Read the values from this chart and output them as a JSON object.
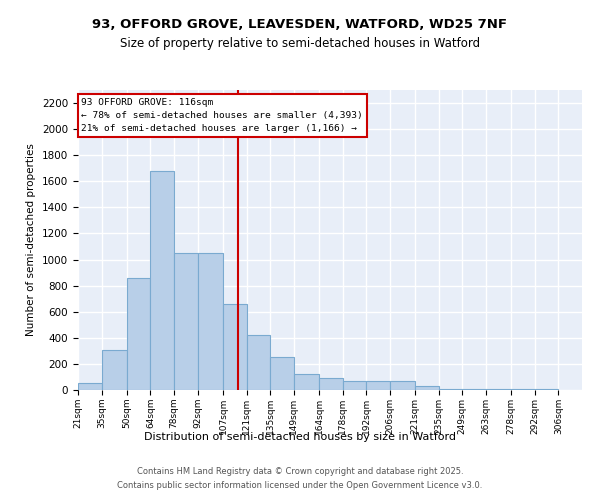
{
  "title": "93, OFFORD GROVE, LEAVESDEN, WATFORD, WD25 7NF",
  "subtitle": "Size of property relative to semi-detached houses in Watford",
  "xlabel": "Distribution of semi-detached houses by size in Watford",
  "ylabel": "Number of semi-detached properties",
  "bin_edges": [
    21,
    35,
    50,
    64,
    78,
    92,
    107,
    121,
    135,
    149,
    164,
    178,
    192,
    206,
    221,
    235,
    249,
    263,
    278,
    292,
    306
  ],
  "heights": [
    50,
    305,
    860,
    1680,
    1050,
    1050,
    660,
    420,
    255,
    120,
    90,
    70,
    70,
    70,
    30,
    5,
    5,
    5,
    5,
    5
  ],
  "bar_color": "#b8cfe8",
  "bar_edge_color": "#7aaad0",
  "bg_color": "#e8eef8",
  "grid_color": "#ffffff",
  "red_line_x": 116,
  "annotation_title": "93 OFFORD GROVE: 116sqm",
  "annotation_line1": "← 78% of semi-detached houses are smaller (4,393)",
  "annotation_line2": "21% of semi-detached houses are larger (1,166) →",
  "red_line_color": "#cc0000",
  "footer_line1": "Contains HM Land Registry data © Crown copyright and database right 2025.",
  "footer_line2": "Contains public sector information licensed under the Open Government Licence v3.0.",
  "ylim_max": 2300,
  "yticks": [
    0,
    200,
    400,
    600,
    800,
    1000,
    1200,
    1400,
    1600,
    1800,
    2000,
    2200
  ]
}
